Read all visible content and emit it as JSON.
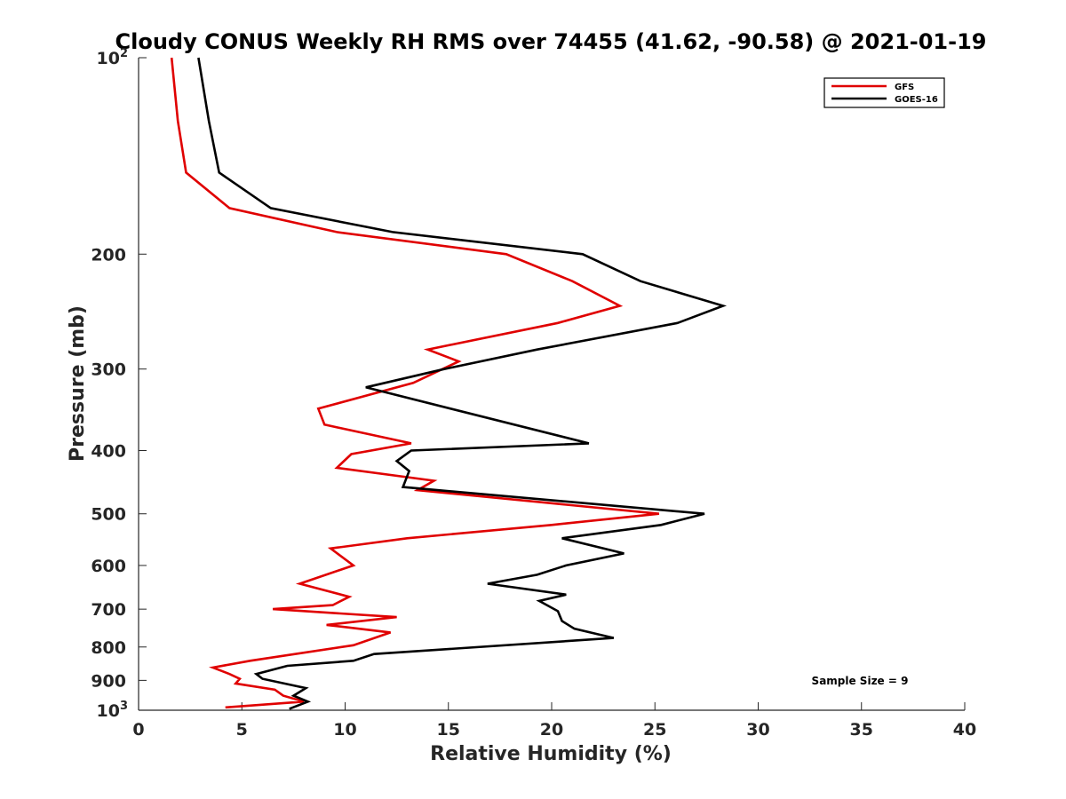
{
  "chart_data": {
    "type": "line",
    "title": "Cloudy CONUS Weekly RH RMS over 74455 (41.62, -90.58) @ 2021-01-19",
    "xlabel": "Relative Humidity (%)",
    "ylabel": "Pressure (mb)",
    "xlim": [
      0,
      40
    ],
    "ylim": [
      100,
      1000
    ],
    "yscale": "log",
    "yreversed": true,
    "grid": false,
    "legend_position": "top-right",
    "xticks": [
      0,
      5,
      10,
      15,
      20,
      25,
      30,
      35,
      40
    ],
    "xtick_labels": [
      "0",
      "5",
      "10",
      "15",
      "20",
      "25",
      "30",
      "35",
      "40"
    ],
    "yticks": [
      {
        "value": 100,
        "base": "10",
        "exp": "2"
      },
      {
        "value": 200,
        "label": "200"
      },
      {
        "value": 300,
        "label": "300"
      },
      {
        "value": 400,
        "label": "400"
      },
      {
        "value": 500,
        "label": "500"
      },
      {
        "value": 600,
        "label": "600"
      },
      {
        "value": 700,
        "label": "700"
      },
      {
        "value": 800,
        "label": "800"
      },
      {
        "value": 900,
        "label": "900"
      },
      {
        "value": 1000,
        "base": "10",
        "exp": "3"
      }
    ],
    "series": [
      {
        "name": "GFS",
        "color": "#e00000",
        "points": [
          [
            1.6,
            100
          ],
          [
            1.9,
            125
          ],
          [
            2.3,
            150
          ],
          [
            4.4,
            170
          ],
          [
            9.6,
            185
          ],
          [
            17.8,
            200
          ],
          [
            21.0,
            220
          ],
          [
            23.3,
            240
          ],
          [
            20.3,
            255
          ],
          [
            14.0,
            280
          ],
          [
            15.5,
            292
          ],
          [
            13.3,
            315
          ],
          [
            8.7,
            345
          ],
          [
            9.0,
            365
          ],
          [
            13.2,
            390
          ],
          [
            10.3,
            405
          ],
          [
            9.6,
            425
          ],
          [
            14.3,
            445
          ],
          [
            13.5,
            460
          ],
          [
            25.2,
            500
          ],
          [
            20.0,
            520
          ],
          [
            13.0,
            545
          ],
          [
            9.3,
            565
          ],
          [
            10.4,
            600
          ],
          [
            7.8,
            640
          ],
          [
            10.2,
            670
          ],
          [
            9.4,
            690
          ],
          [
            6.5,
            700
          ],
          [
            12.5,
            720
          ],
          [
            9.1,
            740
          ],
          [
            12.2,
            760
          ],
          [
            10.4,
            795
          ],
          [
            5.4,
            840
          ],
          [
            3.6,
            860
          ],
          [
            4.4,
            880
          ],
          [
            4.9,
            895
          ],
          [
            4.7,
            910
          ],
          [
            6.6,
            930
          ],
          [
            7.0,
            950
          ],
          [
            8.0,
            970
          ],
          [
            4.2,
            990
          ]
        ]
      },
      {
        "name": "GOES-16",
        "color": "#000000",
        "points": [
          [
            2.9,
            100
          ],
          [
            3.4,
            125
          ],
          [
            3.9,
            150
          ],
          [
            6.4,
            170
          ],
          [
            12.3,
            185
          ],
          [
            21.5,
            200
          ],
          [
            24.3,
            220
          ],
          [
            28.3,
            240
          ],
          [
            26.1,
            255
          ],
          [
            19.3,
            280
          ],
          [
            14.8,
            300
          ],
          [
            11.0,
            320
          ],
          [
            21.8,
            390
          ],
          [
            13.2,
            400
          ],
          [
            12.5,
            415
          ],
          [
            13.1,
            430
          ],
          [
            12.8,
            455
          ],
          [
            27.4,
            500
          ],
          [
            25.3,
            520
          ],
          [
            20.5,
            545
          ],
          [
            23.5,
            575
          ],
          [
            20.7,
            600
          ],
          [
            19.3,
            620
          ],
          [
            16.9,
            640
          ],
          [
            20.7,
            665
          ],
          [
            19.4,
            680
          ],
          [
            20.3,
            705
          ],
          [
            20.5,
            730
          ],
          [
            21.1,
            750
          ],
          [
            23.0,
            775
          ],
          [
            11.4,
            820
          ],
          [
            10.4,
            840
          ],
          [
            7.2,
            855
          ],
          [
            5.7,
            880
          ],
          [
            6.0,
            895
          ],
          [
            8.1,
            925
          ],
          [
            7.5,
            950
          ],
          [
            8.2,
            970
          ],
          [
            7.3,
            995
          ]
        ]
      }
    ],
    "annotations": [
      {
        "text": "Sample Size = 9"
      }
    ]
  }
}
